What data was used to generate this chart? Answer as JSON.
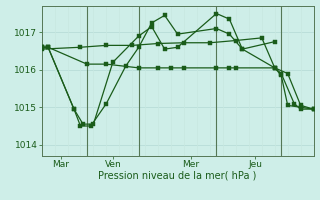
{
  "background_color": "#ceeee8",
  "grid_color_h": "#b8ddd8",
  "grid_color_v": "#c8e8e0",
  "line_color": "#1a5c1a",
  "xlabel": "Pression niveau de la mer( hPa )",
  "ylim": [
    1013.7,
    1017.7
  ],
  "yticks": [
    1014,
    1015,
    1016,
    1017
  ],
  "xlim": [
    0,
    21
  ],
  "day_positions": [
    1.5,
    5.5,
    11.5,
    16.5
  ],
  "day_labels": [
    "Mar",
    "Ven",
    "Mer",
    "Jeu"
  ],
  "day_vlines": [
    3.5,
    7.5,
    13.5,
    18.5
  ],
  "line1_x": [
    0,
    0.5,
    3.5,
    5,
    7.5,
    9,
    10,
    11,
    13.5,
    14.5,
    15,
    18,
    18.5,
    19,
    20,
    21
  ],
  "line1_y": [
    1016.6,
    1016.6,
    1016.15,
    1016.15,
    1016.05,
    1016.05,
    1016.05,
    1016.05,
    1016.05,
    1016.05,
    1016.05,
    1016.05,
    1015.85,
    1015.05,
    1015.0,
    1014.95
  ],
  "line2_x": [
    0,
    0.5,
    2.5,
    3.2,
    4.0,
    5.5,
    7.5,
    8.5,
    9.5,
    10.5,
    13.5,
    14.5,
    15.5,
    18,
    18.5,
    19.5,
    20,
    21
  ],
  "line2_y": [
    1016.6,
    1016.6,
    1014.95,
    1014.55,
    1014.55,
    1016.2,
    1016.9,
    1017.15,
    1016.55,
    1016.6,
    1017.5,
    1017.35,
    1016.55,
    1016.05,
    1015.9,
    1015.1,
    1014.95,
    1014.95
  ],
  "line3_x": [
    0,
    3,
    5,
    7,
    9,
    11,
    13,
    15,
    17,
    18,
    19,
    20,
    21
  ],
  "line3_y": [
    1016.55,
    1016.6,
    1016.65,
    1016.65,
    1016.7,
    1016.72,
    1016.72,
    1016.78,
    1016.85,
    1016.05,
    1015.9,
    1015.05,
    1014.95
  ],
  "line4_x": [
    0,
    0.5,
    2.5,
    3.0,
    3.8,
    5.0,
    6.5,
    7.5,
    8.5,
    9.5,
    10.5,
    13.5,
    14.5,
    15.5,
    18
  ],
  "line4_y": [
    1016.6,
    1016.6,
    1014.95,
    1014.5,
    1014.5,
    1015.1,
    1016.1,
    1016.6,
    1017.25,
    1017.45,
    1016.95,
    1017.1,
    1016.95,
    1016.55,
    1016.75
  ]
}
